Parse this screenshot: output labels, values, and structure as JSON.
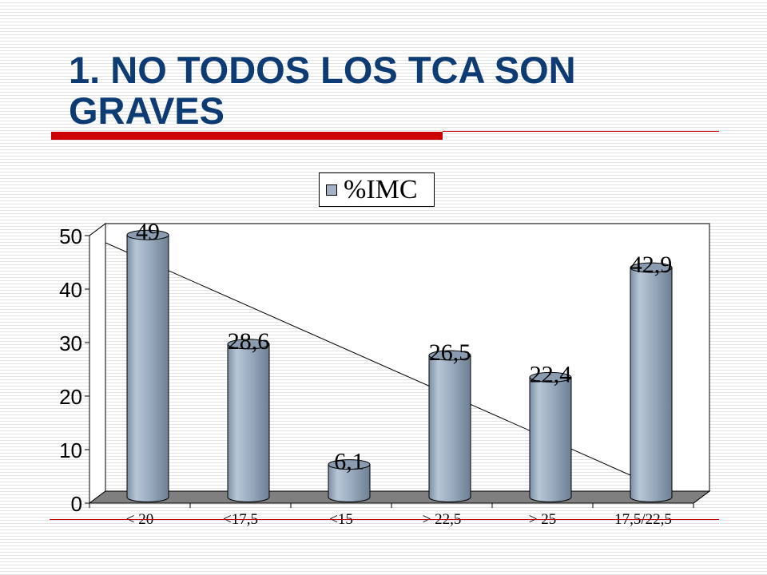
{
  "slide": {
    "title": "1. NO TODOS LOS TCA SON\nGRAVES"
  },
  "colors": {
    "title": "#0d3b73",
    "accent_rule": "#cc0000",
    "bar": "#a2b2c4",
    "floor": "#7f7f7f"
  },
  "chart_data": {
    "type": "bar",
    "style": "3d-cylinder",
    "categories": [
      "< 20",
      "<17,5",
      "<15",
      "> 22,5",
      "> 25",
      "17,5/22,5"
    ],
    "series": [
      {
        "name": "%IMC",
        "values": [
          49,
          28.6,
          6.1,
          26.5,
          22.4,
          42.9
        ]
      }
    ],
    "data_labels": [
      "49",
      "28,6",
      "6,1",
      "26,5",
      "22,4",
      "42,9"
    ],
    "ylim": [
      0,
      50
    ],
    "yticks": [
      0,
      10,
      20,
      30,
      40,
      50
    ],
    "legend": "top-center",
    "grid": false
  }
}
